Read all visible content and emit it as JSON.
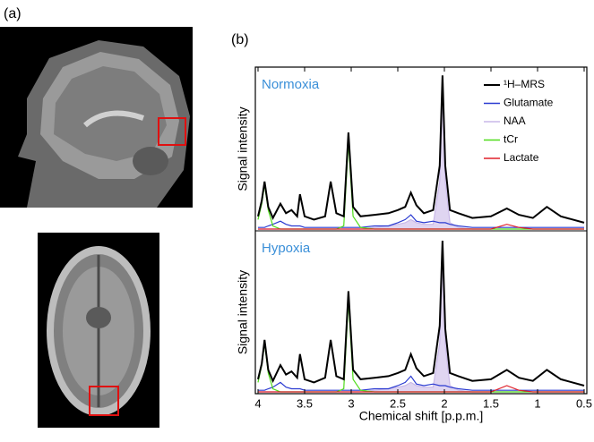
{
  "panel_labels": [
    "(a)",
    "(b)"
  ],
  "chart_data": [
    {
      "type": "line",
      "title": "Normoxia",
      "y_label": "Signal intensity",
      "xlim": [
        4,
        0.5
      ],
      "ylim": [
        0,
        100
      ],
      "legend": "top-right",
      "x": [
        4.0,
        3.96,
        3.93,
        3.89,
        3.84,
        3.76,
        3.7,
        3.64,
        3.58,
        3.55,
        3.5,
        3.4,
        3.28,
        3.22,
        3.16,
        3.08,
        3.03,
        2.98,
        2.9,
        2.75,
        2.6,
        2.5,
        2.42,
        2.36,
        2.3,
        2.22,
        2.12,
        2.05,
        2.02,
        1.99,
        1.94,
        1.85,
        1.7,
        1.5,
        1.33,
        1.2,
        1.05,
        0.9,
        0.75,
        0.5
      ],
      "series": [
        {
          "name": "¹H–MRS",
          "color": "#000000",
          "values": [
            8,
            18,
            30,
            14,
            7,
            16,
            10,
            12,
            8,
            22,
            8,
            6,
            8,
            30,
            10,
            8,
            61,
            14,
            8,
            9,
            10,
            12,
            14,
            23,
            15,
            10,
            12,
            40,
            97,
            40,
            12,
            10,
            7,
            8,
            13,
            9,
            7,
            14,
            8,
            4
          ]
        },
        {
          "name": "Glutamate",
          "color": "#2b3bd1",
          "values": [
            1,
            1,
            1,
            2,
            3,
            5,
            3,
            2,
            2,
            2,
            1,
            1,
            1,
            1,
            1,
            1,
            1,
            1,
            1,
            2,
            2,
            4,
            6,
            9,
            5,
            4,
            5,
            4,
            4,
            4,
            3,
            2,
            1,
            1,
            1,
            1,
            1,
            1,
            1,
            1
          ]
        },
        {
          "name": "NAA",
          "color": "#c9b9e8",
          "values": [
            0,
            0,
            0,
            0,
            0,
            0,
            0,
            0,
            0,
            0,
            0,
            0,
            0,
            0,
            0,
            0,
            0,
            0,
            0,
            1,
            2,
            3,
            4,
            6,
            4,
            3,
            3,
            30,
            90,
            30,
            4,
            1,
            0,
            0,
            0,
            0,
            0,
            0,
            0,
            0
          ]
        },
        {
          "name": "tCr",
          "color": "#4fdc1a",
          "values": [
            6,
            16,
            28,
            12,
            2,
            0,
            0,
            0,
            0,
            0,
            0,
            0,
            0,
            0,
            0,
            2,
            55,
            8,
            1,
            0,
            0,
            0,
            0,
            0,
            0,
            0,
            0,
            0,
            0,
            0,
            0,
            0,
            0,
            0,
            0,
            0,
            0,
            0,
            0,
            0
          ]
        },
        {
          "name": "Lactate",
          "color": "#e0202a",
          "values": [
            0,
            0,
            0,
            0,
            0,
            0,
            0,
            0,
            0,
            0,
            0,
            0,
            0,
            0,
            0,
            0,
            0,
            0,
            0,
            0,
            0,
            0,
            0,
            0,
            0,
            0,
            0,
            0,
            0,
            0,
            0,
            0,
            0,
            0,
            3,
            1,
            0,
            0,
            0,
            0
          ]
        }
      ]
    },
    {
      "type": "line",
      "title": "Hypoxia",
      "y_label": "Signal intensity",
      "x_label": "Chemical shift [p.p.m.]",
      "xlim": [
        4,
        0.5
      ],
      "ylim": [
        0,
        100
      ],
      "xticks": [
        4,
        3.5,
        3,
        2.5,
        2,
        1.5,
        1,
        0.5
      ],
      "x": [
        4.0,
        3.96,
        3.93,
        3.89,
        3.84,
        3.76,
        3.7,
        3.64,
        3.58,
        3.55,
        3.5,
        3.4,
        3.28,
        3.22,
        3.16,
        3.08,
        3.03,
        2.98,
        2.9,
        2.75,
        2.6,
        2.5,
        2.42,
        2.36,
        2.3,
        2.22,
        2.12,
        2.05,
        2.02,
        1.99,
        1.94,
        1.85,
        1.7,
        1.5,
        1.33,
        1.2,
        1.05,
        0.9,
        0.75,
        0.5
      ],
      "series": [
        {
          "name": "¹H–MRS",
          "color": "#000000",
          "values": [
            8,
            18,
            33,
            14,
            7,
            17,
            11,
            13,
            9,
            24,
            8,
            6,
            9,
            33,
            10,
            8,
            64,
            14,
            8,
            9,
            10,
            12,
            14,
            24,
            15,
            10,
            12,
            42,
            96,
            40,
            12,
            10,
            7,
            8,
            14,
            9,
            7,
            14,
            8,
            4
          ]
        },
        {
          "name": "Glutamate",
          "color": "#2b3bd1",
          "values": [
            1,
            1,
            1,
            2,
            3,
            6,
            3,
            2,
            2,
            2,
            1,
            1,
            1,
            1,
            1,
            1,
            1,
            1,
            1,
            2,
            2,
            4,
            6,
            10,
            5,
            4,
            5,
            4,
            4,
            4,
            3,
            2,
            1,
            1,
            1,
            1,
            1,
            1,
            1,
            1
          ]
        },
        {
          "name": "NAA",
          "color": "#c9b9e8",
          "values": [
            0,
            0,
            0,
            0,
            0,
            0,
            0,
            0,
            0,
            0,
            0,
            0,
            0,
            0,
            0,
            0,
            0,
            0,
            0,
            1,
            2,
            3,
            4,
            6,
            4,
            3,
            3,
            31,
            89,
            30,
            4,
            1,
            0,
            0,
            0,
            0,
            0,
            0,
            0,
            0
          ]
        },
        {
          "name": "tCr",
          "color": "#4fdc1a",
          "values": [
            6,
            17,
            31,
            12,
            2,
            0,
            0,
            0,
            0,
            0,
            0,
            0,
            0,
            0,
            0,
            2,
            58,
            8,
            1,
            0,
            0,
            0,
            0,
            0,
            0,
            0,
            0,
            0,
            0,
            0,
            0,
            0,
            0,
            0,
            0,
            0,
            0,
            0,
            0,
            0
          ]
        },
        {
          "name": "Lactate",
          "color": "#e0202a",
          "values": [
            0,
            0,
            0,
            0,
            0,
            0,
            0,
            0,
            0,
            0,
            0,
            0,
            0,
            0,
            0,
            0,
            0,
            0,
            0,
            0,
            0,
            0,
            0,
            0,
            0,
            0,
            0,
            0,
            0,
            0,
            0,
            0,
            0,
            0,
            4,
            1,
            0,
            0,
            0,
            0
          ]
        }
      ]
    }
  ]
}
